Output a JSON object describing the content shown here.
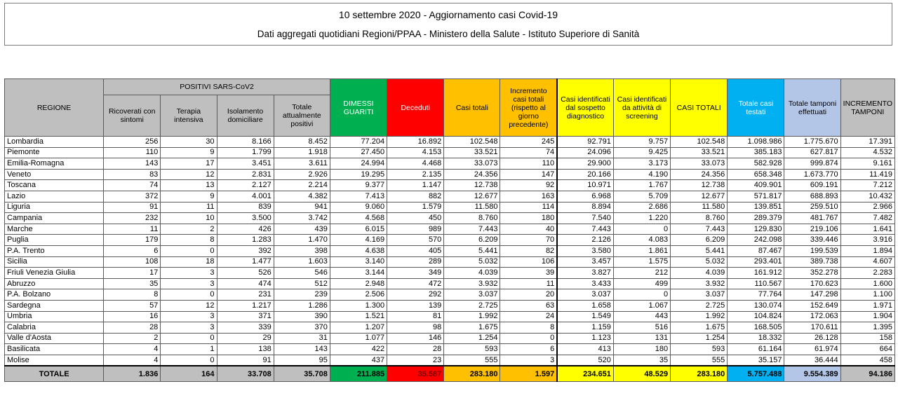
{
  "header": {
    "title": "10 settembre 2020 - Aggiornamento casi Covid-19",
    "subtitle": "Dati aggregati quotidiani Regioni/PPAA - Ministero della Salute - Istituto Superiore di Sanità"
  },
  "table": {
    "regione_label": "REGIONE",
    "positivi_label": "POSITIVI SARS-CoV2",
    "columns": [
      "Ricoverati con sintomi",
      "Terapia intensiva",
      "Isolamento domiciliare",
      "Totale attualmente positivi",
      "DIMESSI GUARITI",
      "Deceduti",
      "Casi totali",
      "Incremento casi totali (rispetto al giorno precedente)",
      "Casi identificati dal sospetto diagnostico",
      "Casi identificati da attività di screening",
      "CASI TOTALI",
      "Totale casi testati",
      "Totale tamponi effettuati",
      "INCREMENTO TAMPONI"
    ],
    "rows": [
      {
        "regione": "Lombardia",
        "values": [
          "256",
          "30",
          "8.166",
          "8.452",
          "77.204",
          "16.892",
          "102.548",
          "245",
          "92.791",
          "9.757",
          "102.548",
          "1.098.986",
          "1.775.670",
          "17.391"
        ]
      },
      {
        "regione": "Piemonte",
        "values": [
          "110",
          "9",
          "1.799",
          "1.918",
          "27.450",
          "4.153",
          "33.521",
          "74",
          "24.096",
          "9.425",
          "33.521",
          "385.183",
          "627.817",
          "4.532"
        ]
      },
      {
        "regione": "Emilia-Romagna",
        "values": [
          "143",
          "17",
          "3.451",
          "3.611",
          "24.994",
          "4.468",
          "33.073",
          "110",
          "29.900",
          "3.173",
          "33.073",
          "582.928",
          "999.874",
          "9.161"
        ]
      },
      {
        "regione": "Veneto",
        "values": [
          "83",
          "12",
          "2.831",
          "2.926",
          "19.295",
          "2.135",
          "24.356",
          "147",
          "20.166",
          "4.190",
          "24.356",
          "658.348",
          "1.673.770",
          "11.419"
        ]
      },
      {
        "regione": "Toscana",
        "values": [
          "74",
          "13",
          "2.127",
          "2.214",
          "9.377",
          "1.147",
          "12.738",
          "92",
          "10.971",
          "1.767",
          "12.738",
          "409.901",
          "609.191",
          "7.212"
        ]
      },
      {
        "regione": "Lazio",
        "values": [
          "372",
          "9",
          "4.001",
          "4.382",
          "7.413",
          "882",
          "12.677",
          "163",
          "6.968",
          "5.709",
          "12.677",
          "571.817",
          "688.893",
          "10.432"
        ]
      },
      {
        "regione": "Liguria",
        "values": [
          "91",
          "11",
          "839",
          "941",
          "9.060",
          "1.579",
          "11.580",
          "114",
          "8.894",
          "2.686",
          "11.580",
          "139.851",
          "259.510",
          "2.966"
        ]
      },
      {
        "regione": "Campania",
        "values": [
          "232",
          "10",
          "3.500",
          "3.742",
          "4.568",
          "450",
          "8.760",
          "180",
          "7.540",
          "1.220",
          "8.760",
          "289.379",
          "481.767",
          "7.482"
        ]
      },
      {
        "regione": "Marche",
        "values": [
          "11",
          "2",
          "426",
          "439",
          "6.015",
          "989",
          "7.443",
          "40",
          "7.443",
          "0",
          "7.443",
          "129.830",
          "219.106",
          "1.641"
        ]
      },
      {
        "regione": "Puglia",
        "values": [
          "179",
          "8",
          "1.283",
          "1.470",
          "4.169",
          "570",
          "6.209",
          "70",
          "2.126",
          "4.083",
          "6.209",
          "242.098",
          "339.446",
          "3.916"
        ]
      },
      {
        "regione": "P.A. Trento",
        "values": [
          "6",
          "0",
          "392",
          "398",
          "4.638",
          "405",
          "5.441",
          "82",
          "3.580",
          "1.861",
          "5.441",
          "87.467",
          "199.539",
          "1.894"
        ]
      },
      {
        "regione": "Sicilia",
        "values": [
          "108",
          "18",
          "1.477",
          "1.603",
          "3.140",
          "289",
          "5.032",
          "106",
          "3.457",
          "1.575",
          "5.032",
          "293.401",
          "389.738",
          "4.607"
        ]
      },
      {
        "regione": "Friuli Venezia Giulia",
        "values": [
          "17",
          "3",
          "526",
          "546",
          "3.144",
          "349",
          "4.039",
          "39",
          "3.827",
          "212",
          "4.039",
          "161.912",
          "352.278",
          "2.283"
        ]
      },
      {
        "regione": "Abruzzo",
        "values": [
          "35",
          "3",
          "474",
          "512",
          "2.948",
          "472",
          "3.932",
          "11",
          "3.433",
          "499",
          "3.932",
          "110.567",
          "170.623",
          "1.600"
        ]
      },
      {
        "regione": "P.A. Bolzano",
        "values": [
          "8",
          "0",
          "231",
          "239",
          "2.506",
          "292",
          "3.037",
          "20",
          "3.037",
          "0",
          "3.037",
          "77.764",
          "147.298",
          "1.100"
        ]
      },
      {
        "regione": "Sardegna",
        "values": [
          "57",
          "12",
          "1.217",
          "1.286",
          "1.300",
          "139",
          "2.725",
          "63",
          "1.658",
          "1.067",
          "2.725",
          "130.074",
          "152.649",
          "1.971"
        ]
      },
      {
        "regione": "Umbria",
        "values": [
          "16",
          "3",
          "371",
          "390",
          "1.521",
          "81",
          "1.992",
          "24",
          "1.549",
          "443",
          "1.992",
          "104.824",
          "172.063",
          "1.904"
        ]
      },
      {
        "regione": "Calabria",
        "values": [
          "28",
          "3",
          "339",
          "370",
          "1.207",
          "98",
          "1.675",
          "8",
          "1.159",
          "516",
          "1.675",
          "168.505",
          "170.611",
          "1.395"
        ]
      },
      {
        "regione": "Valle d'Aosta",
        "values": [
          "2",
          "0",
          "29",
          "31",
          "1.077",
          "146",
          "1.254",
          "0",
          "1.123",
          "131",
          "1.254",
          "18.332",
          "26.128",
          "158"
        ]
      },
      {
        "regione": "Basilicata",
        "values": [
          "4",
          "1",
          "138",
          "143",
          "422",
          "28",
          "593",
          "6",
          "413",
          "180",
          "593",
          "61.164",
          "61.974",
          "664"
        ]
      },
      {
        "regione": "Molise",
        "values": [
          "4",
          "0",
          "91",
          "95",
          "437",
          "23",
          "555",
          "3",
          "520",
          "35",
          "555",
          "35.157",
          "36.444",
          "458"
        ]
      }
    ],
    "totale": {
      "label": "TOTALE",
      "values": [
        "1.836",
        "164",
        "33.708",
        "35.708",
        "211.885",
        "35.587",
        "283.180",
        "1.597",
        "234.651",
        "48.529",
        "283.180",
        "5.757.488",
        "9.554.389",
        "94.186"
      ]
    }
  }
}
